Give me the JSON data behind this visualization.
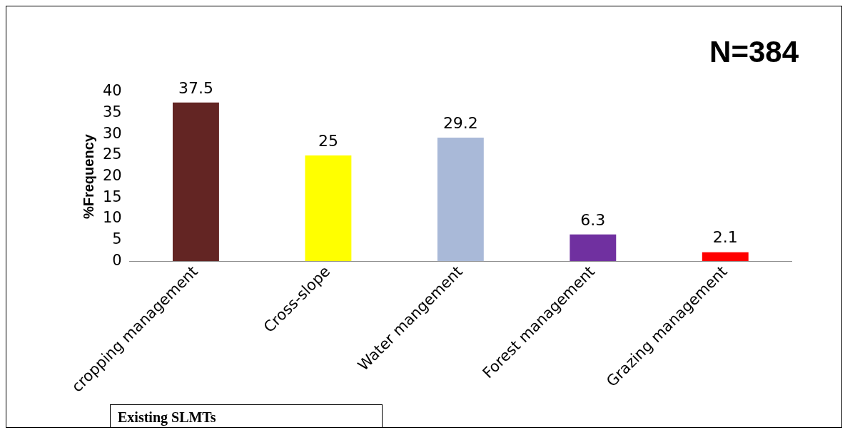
{
  "chart_data": {
    "type": "bar",
    "categories": [
      "cropping management",
      "Cross-slope",
      "Water mangement",
      "Forest management",
      "Grazing management"
    ],
    "values": [
      37.5,
      25,
      29.2,
      6.3,
      2.1
    ],
    "colors": [
      "#632523",
      "#ffff00",
      "#a9b9d8",
      "#7030a0",
      "#ff0000"
    ],
    "ylabel": "%Frequency",
    "xlabel": "Existing SLMTs",
    "ylim": [
      0,
      40
    ],
    "yticks": [
      0,
      5,
      10,
      15,
      20,
      25,
      30,
      35,
      40
    ],
    "data_labels": true,
    "grid": false,
    "legend": false,
    "annotations": [
      "N=384"
    ]
  }
}
